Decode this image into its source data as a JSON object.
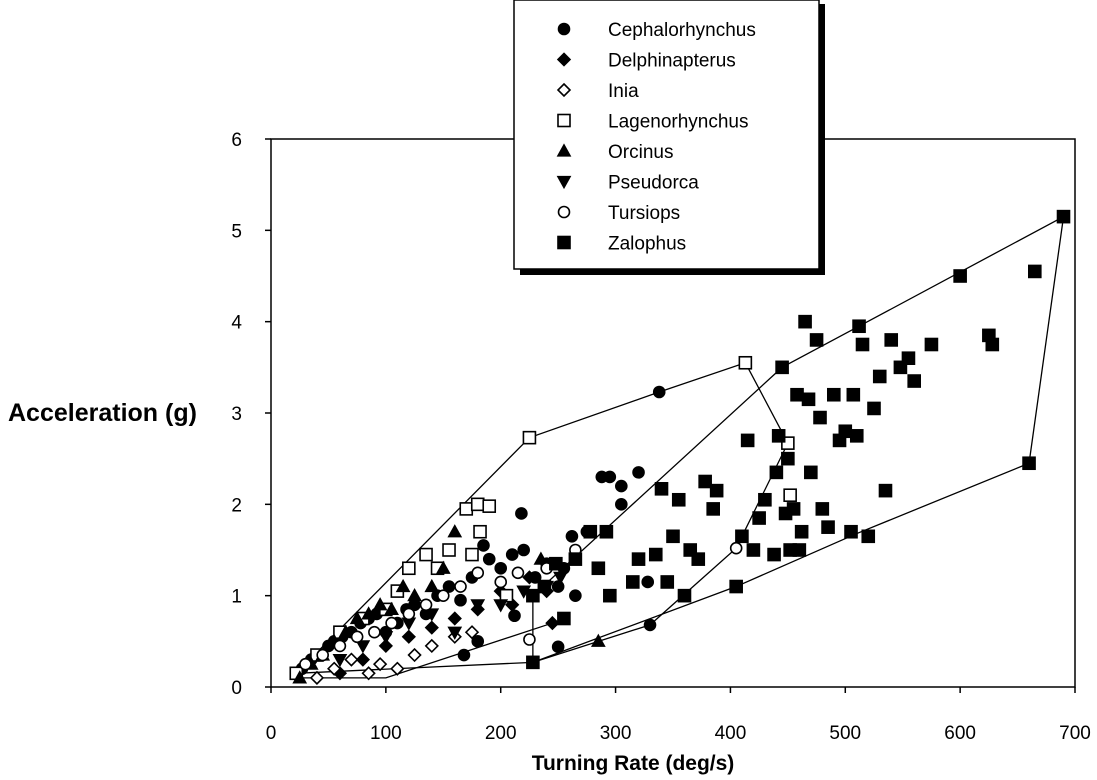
{
  "chart_data": {
    "type": "scatter",
    "title": "",
    "xlabel": "Turning Rate (deg/s)",
    "ylabel": "Acceleration (g)",
    "xlim": [
      0,
      700
    ],
    "ylim": [
      0,
      6
    ],
    "x_ticks": [
      "0",
      "100",
      "200",
      "300",
      "400",
      "500",
      "600",
      "700"
    ],
    "y_ticks": [
      "0",
      "1",
      "2",
      "3",
      "4",
      "5",
      "6"
    ],
    "grid": false,
    "legend_position": "top",
    "series": [
      {
        "name": "Cephalorhynchus",
        "marker": "filled-circle",
        "points": [
          [
            27,
            0.2
          ],
          [
            35,
            0.3
          ],
          [
            42,
            0.35
          ],
          [
            50,
            0.45
          ],
          [
            55,
            0.5
          ],
          [
            62,
            0.55
          ],
          [
            70,
            0.6
          ],
          [
            78,
            0.7
          ],
          [
            85,
            0.75
          ],
          [
            92,
            0.8
          ],
          [
            100,
            0.6
          ],
          [
            110,
            0.7
          ],
          [
            118,
            0.85
          ],
          [
            125,
            0.9
          ],
          [
            135,
            0.8
          ],
          [
            145,
            1.0
          ],
          [
            155,
            1.1
          ],
          [
            165,
            0.95
          ],
          [
            175,
            1.2
          ],
          [
            185,
            1.55
          ],
          [
            190,
            1.4
          ],
          [
            200,
            1.3
          ],
          [
            210,
            1.45
          ],
          [
            218,
            1.9
          ],
          [
            220,
            1.5
          ],
          [
            230,
            1.2
          ],
          [
            240,
            1.35
          ],
          [
            250,
            1.1
          ],
          [
            255,
            1.3
          ],
          [
            262,
            1.65
          ],
          [
            265,
            1.0
          ],
          [
            275,
            1.7
          ],
          [
            288,
            2.3
          ],
          [
            295,
            2.3
          ],
          [
            305,
            2.2
          ],
          [
            305,
            2.0
          ],
          [
            320,
            2.35
          ],
          [
            328,
            1.15
          ],
          [
            338,
            3.23
          ],
          [
            330,
            0.68
          ],
          [
            250,
            0.44
          ],
          [
            212,
            0.78
          ],
          [
            180,
            0.5
          ],
          [
            168,
            0.35
          ]
        ]
      },
      {
        "name": "Delphinapterus",
        "marker": "filled-diamond",
        "points": [
          [
            60,
            0.15
          ],
          [
            80,
            0.3
          ],
          [
            100,
            0.45
          ],
          [
            120,
            0.55
          ],
          [
            140,
            0.65
          ],
          [
            160,
            0.75
          ],
          [
            180,
            0.85
          ],
          [
            200,
            1.05
          ],
          [
            210,
            0.9
          ],
          [
            225,
            1.2
          ],
          [
            240,
            1.05
          ],
          [
            245,
            0.7
          ]
        ]
      },
      {
        "name": "Inia",
        "marker": "open-diamond",
        "points": [
          [
            40,
            0.1
          ],
          [
            55,
            0.2
          ],
          [
            70,
            0.3
          ],
          [
            85,
            0.15
          ],
          [
            95,
            0.25
          ],
          [
            110,
            0.2
          ],
          [
            125,
            0.35
          ],
          [
            140,
            0.45
          ],
          [
            160,
            0.55
          ],
          [
            175,
            0.6
          ]
        ]
      },
      {
        "name": "Lagenorhynchus",
        "marker": "open-square",
        "points": [
          [
            22,
            0.15
          ],
          [
            40,
            0.35
          ],
          [
            60,
            0.6
          ],
          [
            80,
            0.75
          ],
          [
            100,
            0.85
          ],
          [
            110,
            1.05
          ],
          [
            120,
            1.3
          ],
          [
            135,
            1.45
          ],
          [
            145,
            1.3
          ],
          [
            155,
            1.5
          ],
          [
            170,
            1.95
          ],
          [
            175,
            1.45
          ],
          [
            180,
            2.0
          ],
          [
            182,
            1.7
          ],
          [
            190,
            1.98
          ],
          [
            205,
            1.0
          ],
          [
            225,
            2.73
          ],
          [
            413,
            3.55
          ],
          [
            450,
            2.67
          ],
          [
            452,
            2.1
          ]
        ]
      },
      {
        "name": "Orcinus",
        "marker": "filled-triangle",
        "points": [
          [
            25,
            0.1
          ],
          [
            35,
            0.25
          ],
          [
            45,
            0.35
          ],
          [
            55,
            0.5
          ],
          [
            65,
            0.6
          ],
          [
            75,
            0.75
          ],
          [
            85,
            0.8
          ],
          [
            95,
            0.9
          ],
          [
            105,
            0.85
          ],
          [
            115,
            1.1
          ],
          [
            125,
            1.0
          ],
          [
            140,
            1.1
          ],
          [
            150,
            1.3
          ],
          [
            160,
            1.7
          ],
          [
            235,
            1.4
          ],
          [
            285,
            0.5
          ]
        ]
      },
      {
        "name": "Pseudorca",
        "marker": "filled-inverted-triangle",
        "points": [
          [
            60,
            0.3
          ],
          [
            80,
            0.45
          ],
          [
            100,
            0.55
          ],
          [
            120,
            0.7
          ],
          [
            140,
            0.8
          ],
          [
            160,
            0.6
          ],
          [
            180,
            0.9
          ],
          [
            200,
            0.9
          ],
          [
            220,
            1.05
          ],
          [
            240,
            1.1
          ],
          [
            252,
            1.2
          ]
        ]
      },
      {
        "name": "Tursiops",
        "marker": "open-circle",
        "points": [
          [
            30,
            0.25
          ],
          [
            45,
            0.35
          ],
          [
            60,
            0.45
          ],
          [
            75,
            0.55
          ],
          [
            90,
            0.6
          ],
          [
            105,
            0.7
          ],
          [
            120,
            0.8
          ],
          [
            135,
            0.9
          ],
          [
            150,
            1.0
          ],
          [
            165,
            1.1
          ],
          [
            180,
            1.25
          ],
          [
            200,
            1.15
          ],
          [
            215,
            1.25
          ],
          [
            225,
            0.52
          ],
          [
            240,
            1.3
          ],
          [
            265,
            1.5
          ],
          [
            405,
            1.52
          ]
        ]
      },
      {
        "name": "Zalophus",
        "marker": "filled-square",
        "points": [
          [
            228,
            0.27
          ],
          [
            228,
            1.0
          ],
          [
            238,
            1.1
          ],
          [
            248,
            1.35
          ],
          [
            255,
            0.75
          ],
          [
            265,
            1.4
          ],
          [
            278,
            1.7
          ],
          [
            285,
            1.3
          ],
          [
            292,
            1.7
          ],
          [
            295,
            1.0
          ],
          [
            315,
            1.15
          ],
          [
            320,
            1.4
          ],
          [
            335,
            1.45
          ],
          [
            340,
            2.17
          ],
          [
            345,
            1.15
          ],
          [
            350,
            1.65
          ],
          [
            355,
            2.05
          ],
          [
            360,
            1.0
          ],
          [
            365,
            1.5
          ],
          [
            372,
            1.4
          ],
          [
            378,
            2.25
          ],
          [
            385,
            1.95
          ],
          [
            388,
            2.15
          ],
          [
            405,
            1.1
          ],
          [
            410,
            1.65
          ],
          [
            415,
            2.7
          ],
          [
            420,
            1.5
          ],
          [
            425,
            1.85
          ],
          [
            430,
            2.05
          ],
          [
            438,
            1.45
          ],
          [
            440,
            2.35
          ],
          [
            442,
            2.75
          ],
          [
            445,
            3.5
          ],
          [
            448,
            1.9
          ],
          [
            450,
            2.5
          ],
          [
            452,
            1.5
          ],
          [
            455,
            1.95
          ],
          [
            458,
            3.2
          ],
          [
            460,
            1.5
          ],
          [
            462,
            1.7
          ],
          [
            465,
            4.0
          ],
          [
            468,
            3.15
          ],
          [
            470,
            2.35
          ],
          [
            475,
            3.8
          ],
          [
            478,
            2.95
          ],
          [
            480,
            1.95
          ],
          [
            485,
            1.75
          ],
          [
            490,
            3.2
          ],
          [
            495,
            2.7
          ],
          [
            500,
            2.8
          ],
          [
            505,
            1.7
          ],
          [
            507,
            3.2
          ],
          [
            510,
            2.75
          ],
          [
            512,
            3.95
          ],
          [
            515,
            3.75
          ],
          [
            520,
            1.65
          ],
          [
            525,
            3.05
          ],
          [
            530,
            3.4
          ],
          [
            535,
            2.15
          ],
          [
            540,
            3.8
          ],
          [
            548,
            3.5
          ],
          [
            555,
            3.6
          ],
          [
            560,
            3.35
          ],
          [
            575,
            3.75
          ],
          [
            600,
            4.5
          ],
          [
            625,
            3.85
          ],
          [
            628,
            3.75
          ],
          [
            660,
            2.45
          ],
          [
            665,
            4.55
          ],
          [
            690,
            5.15
          ]
        ]
      }
    ],
    "outlines": [
      {
        "name": "envelope-large",
        "points": [
          [
            22,
            0.15
          ],
          [
            225,
            2.73
          ],
          [
            338,
            3.23
          ],
          [
            413,
            3.55
          ],
          [
            450,
            2.67
          ],
          [
            405,
            1.52
          ],
          [
            330,
            0.68
          ],
          [
            285,
            0.5
          ],
          [
            228,
            0.27
          ],
          [
            22,
            0.15
          ]
        ]
      },
      {
        "name": "envelope-zalophus",
        "points": [
          [
            228,
            0.27
          ],
          [
            228,
            1.0
          ],
          [
            445,
            3.5
          ],
          [
            512,
            3.95
          ],
          [
            690,
            5.15
          ],
          [
            660,
            2.45
          ],
          [
            510,
            1.68
          ],
          [
            405,
            1.1
          ],
          [
            228,
            0.27
          ]
        ]
      },
      {
        "name": "envelope-small",
        "points": [
          [
            22,
            0.1
          ],
          [
            100,
            0.1
          ],
          [
            245,
            0.7
          ]
        ]
      }
    ]
  }
}
